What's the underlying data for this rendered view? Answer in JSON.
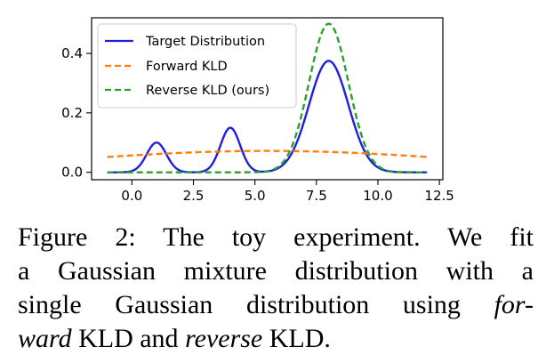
{
  "chart_data": {
    "type": "line",
    "title": "",
    "xlabel": "",
    "ylabel": "",
    "xlim": [
      -1.64,
      12.64
    ],
    "ylim": [
      -0.025,
      0.52
    ],
    "xticks": [
      0.0,
      2.5,
      5.0,
      7.5,
      10.0,
      12.5
    ],
    "xtick_labels": [
      "0.0",
      "2.5",
      "5.0",
      "7.5",
      "10.0",
      "12.5"
    ],
    "yticks": [
      0.0,
      0.2,
      0.4
    ],
    "ytick_labels": [
      "0.0",
      "0.2",
      "0.4"
    ],
    "x_range": [
      -1,
      12
    ],
    "grid": false,
    "legend_position": "top-left",
    "series": [
      {
        "name": "Target Distribution",
        "style": "solid",
        "color": "#1f1fe0",
        "components": [
          {
            "mean": 1.0,
            "std": 0.4,
            "peak": 0.1
          },
          {
            "mean": 4.0,
            "std": 0.4,
            "peak": 0.15
          },
          {
            "mean": 8.0,
            "std": 0.8,
            "peak": 0.375
          }
        ]
      },
      {
        "name": "Forward KLD",
        "style": "dashed",
        "color": "#ff7f0e",
        "components": [
          {
            "mean": 5.5,
            "std": 8.0,
            "peak": 0.072
          }
        ]
      },
      {
        "name": "Reverse KLD (ours)",
        "style": "dashed",
        "color": "#2ca02c",
        "components": [
          {
            "mean": 8.0,
            "std": 0.8,
            "peak": 0.5
          }
        ]
      }
    ]
  },
  "caption": {
    "line1": "Figure 2:  The toy experiment.  We fit",
    "line2": "a Gaussian mixture distribution with a",
    "line3_a": "single Gaussian distribution using ",
    "line3_b": "for-",
    "line4_a": "ward",
    "line4_b": " KLD and ",
    "line4_c": "reverse",
    "line4_d": " KLD."
  }
}
